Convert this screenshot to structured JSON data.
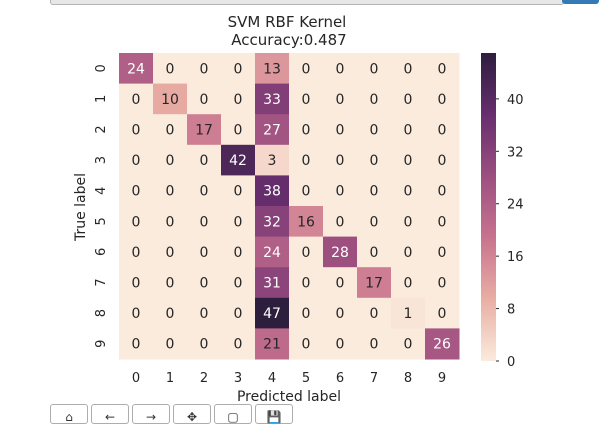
{
  "chart_data": {
    "type": "heatmap",
    "title": "SVM RBF Kernel",
    "subtitle": "Accuracy:0.487",
    "xlabel": "Predicted label",
    "ylabel": "True label",
    "x_categories": [
      "0",
      "1",
      "2",
      "3",
      "4",
      "5",
      "6",
      "7",
      "8",
      "9"
    ],
    "y_categories": [
      "0",
      "1",
      "2",
      "3",
      "4",
      "5",
      "6",
      "7",
      "8",
      "9"
    ],
    "values": [
      [
        24,
        0,
        0,
        0,
        13,
        0,
        0,
        0,
        0,
        0
      ],
      [
        0,
        10,
        0,
        0,
        33,
        0,
        0,
        0,
        0,
        0
      ],
      [
        0,
        0,
        17,
        0,
        27,
        0,
        0,
        0,
        0,
        0
      ],
      [
        0,
        0,
        0,
        42,
        3,
        0,
        0,
        0,
        0,
        0
      ],
      [
        0,
        0,
        0,
        0,
        38,
        0,
        0,
        0,
        0,
        0
      ],
      [
        0,
        0,
        0,
        0,
        32,
        16,
        0,
        0,
        0,
        0
      ],
      [
        0,
        0,
        0,
        0,
        24,
        0,
        28,
        0,
        0,
        0
      ],
      [
        0,
        0,
        0,
        0,
        31,
        0,
        0,
        17,
        0,
        0
      ],
      [
        0,
        0,
        0,
        0,
        47,
        0,
        0,
        0,
        1,
        0
      ],
      [
        0,
        0,
        0,
        0,
        21,
        0,
        0,
        0,
        0,
        26
      ]
    ],
    "colorbar": {
      "min": 0,
      "max": 47,
      "ticks": [
        0,
        8,
        16,
        24,
        32,
        40
      ]
    },
    "colormap": [
      "#faebdd",
      "#e9aea4",
      "#c8738e",
      "#9c4f80",
      "#672e6e",
      "#2d1e3e"
    ]
  },
  "toolbar": {
    "buttons": [
      {
        "name": "home-icon",
        "glyph": "⌂"
      },
      {
        "name": "back-icon",
        "glyph": "←"
      },
      {
        "name": "forward-icon",
        "glyph": "→"
      },
      {
        "name": "pan-icon",
        "glyph": "✥"
      },
      {
        "name": "zoom-icon",
        "glyph": "▢"
      },
      {
        "name": "save-icon",
        "glyph": "💾"
      }
    ]
  }
}
